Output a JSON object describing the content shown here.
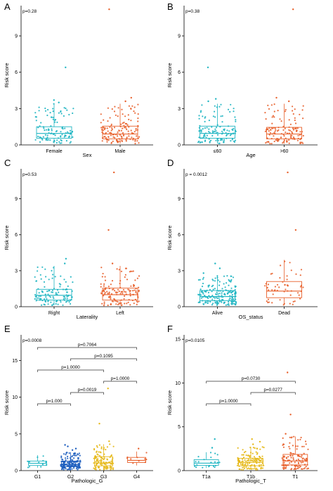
{
  "chart_data": [
    {
      "panel": "A",
      "type": "boxplot",
      "pvalue": "p=0.28",
      "xlabel": "Sex",
      "ylabel": "Risk score",
      "ylim": [
        0,
        11.5
      ],
      "yticks": [
        0,
        3,
        6,
        9
      ],
      "groups": [
        {
          "label": "Female",
          "color": "#1fb5c2",
          "q1": 0.55,
          "median": 0.95,
          "q3": 1.5,
          "wlow": 0.12,
          "whigh": 3.4,
          "n": 110,
          "outliers": [
            3.5,
            3.7,
            6.4
          ]
        },
        {
          "label": "Male",
          "color": "#e8612c",
          "q1": 0.5,
          "median": 0.9,
          "q3": 1.55,
          "wlow": 0.1,
          "whigh": 3.4,
          "n": 140,
          "outliers": [
            3.6,
            3.9,
            11.2
          ]
        }
      ],
      "brackets": []
    },
    {
      "panel": "B",
      "type": "boxplot",
      "pvalue": "p=0.38",
      "xlabel": "Age",
      "ylabel": "Risk score",
      "ylim": [
        0,
        11.5
      ],
      "yticks": [
        0,
        3,
        6,
        9
      ],
      "groups": [
        {
          "label": "≤60",
          "color": "#1fb5c2",
          "q1": 0.55,
          "median": 0.95,
          "q3": 1.55,
          "wlow": 0.12,
          "whigh": 3.4,
          "n": 120,
          "outliers": [
            3.6,
            3.8,
            6.4
          ]
        },
        {
          "label": ">60",
          "color": "#e8612c",
          "q1": 0.5,
          "median": 0.9,
          "q3": 1.45,
          "wlow": 0.1,
          "whigh": 3.4,
          "n": 130,
          "outliers": [
            3.6,
            3.9,
            11.2
          ]
        }
      ],
      "brackets": []
    },
    {
      "panel": "C",
      "type": "boxplot",
      "pvalue": "p=0.53",
      "xlabel": "Laterality",
      "ylabel": "Risk score",
      "ylim": [
        0,
        11.5
      ],
      "yticks": [
        0,
        3,
        6,
        9
      ],
      "groups": [
        {
          "label": "Right",
          "color": "#1fb5c2",
          "q1": 0.55,
          "median": 0.95,
          "q3": 1.45,
          "wlow": 0.12,
          "whigh": 3.4,
          "n": 115,
          "outliers": [
            3.6,
            4.0
          ]
        },
        {
          "label": "Left",
          "color": "#e8612c",
          "q1": 0.55,
          "median": 1.0,
          "q3": 1.55,
          "wlow": 0.1,
          "whigh": 3.4,
          "n": 135,
          "outliers": [
            3.6,
            6.4,
            11.2
          ]
        }
      ],
      "brackets": []
    },
    {
      "panel": "D",
      "type": "boxplot",
      "pvalue": "p = 0.0012",
      "xlabel": "OS_status",
      "ylabel": "Risk score",
      "ylim": [
        0,
        11.5
      ],
      "yticks": [
        0,
        3,
        6,
        9
      ],
      "groups": [
        {
          "label": "Alive",
          "color": "#1fb5c2",
          "q1": 0.5,
          "median": 0.85,
          "q3": 1.35,
          "wlow": 0.1,
          "whigh": 2.6,
          "n": 190,
          "outliers": [
            2.8,
            3.2,
            3.6
          ]
        },
        {
          "label": "Dead",
          "color": "#e8612c",
          "q1": 0.75,
          "median": 1.3,
          "q3": 2.1,
          "wlow": 0.15,
          "whigh": 3.9,
          "n": 55,
          "outliers": [
            6.4,
            11.2
          ]
        }
      ],
      "brackets": []
    },
    {
      "panel": "E",
      "type": "boxplot",
      "pvalue": "p=0.0008",
      "xlabel": "Pathologic_G",
      "ylabel": "Risk score",
      "ylim": [
        0,
        18.5
      ],
      "yticks": [
        0,
        5,
        10,
        15
      ],
      "groups": [
        {
          "label": "G1",
          "color": "#1fb5c2",
          "q1": 0.7,
          "median": 1.0,
          "q3": 1.3,
          "wlow": 0.4,
          "whigh": 2.1,
          "n": 12,
          "outliers": []
        },
        {
          "label": "G2",
          "color": "#1f5fbf",
          "q1": 0.55,
          "median": 0.85,
          "q3": 1.3,
          "wlow": 0.1,
          "whigh": 2.5,
          "n": 170,
          "outliers": [
            2.8,
            3.0,
            3.3,
            3.5
          ]
        },
        {
          "label": "G3",
          "color": "#e6b817",
          "q1": 0.65,
          "median": 1.05,
          "q3": 1.9,
          "wlow": 0.12,
          "whigh": 3.6,
          "n": 110,
          "outliers": [
            4.0,
            6.4,
            11.2
          ]
        },
        {
          "label": "G4",
          "color": "#e8612c",
          "q1": 1.1,
          "median": 1.4,
          "q3": 1.8,
          "wlow": 0.7,
          "whigh": 2.6,
          "n": 10,
          "outliers": [
            3.0
          ]
        }
      ],
      "brackets": [
        {
          "from": 0,
          "to": 3,
          "level": 6,
          "label": "p=0.7064"
        },
        {
          "from": 1,
          "to": 3,
          "level": 5,
          "label": "p=0.1095"
        },
        {
          "from": 0,
          "to": 2,
          "level": 4,
          "label": "p=1.0000"
        },
        {
          "from": 2,
          "to": 3,
          "level": 3,
          "label": "p=1.0000"
        },
        {
          "from": 1,
          "to": 2,
          "level": 2,
          "label": "p=0.0019"
        },
        {
          "from": 0,
          "to": 1,
          "level": 1,
          "label": "p=1.000"
        }
      ]
    },
    {
      "panel": "F",
      "type": "boxplot",
      "pvalue": "p=0.0105",
      "xlabel": "Pathologic_T",
      "ylabel": "Risk score",
      "ylim": [
        0,
        15.5
      ],
      "yticks": [
        0,
        5,
        10,
        15
      ],
      "groups": [
        {
          "label": "T1a",
          "color": "#1fb5c2",
          "q1": 0.6,
          "median": 0.85,
          "q3": 1.25,
          "wlow": 0.3,
          "whigh": 2.1,
          "n": 22,
          "outliers": [
            2.6,
            3.6
          ]
        },
        {
          "label": "T1b",
          "color": "#e6b817",
          "q1": 0.55,
          "median": 0.95,
          "q3": 1.4,
          "wlow": 0.1,
          "whigh": 2.7,
          "n": 130,
          "outliers": [
            3.0,
            3.3,
            3.6
          ]
        },
        {
          "label": "T1",
          "color": "#e8612c",
          "q1": 0.65,
          "median": 1.1,
          "q3": 1.85,
          "wlow": 0.12,
          "whigh": 3.9,
          "n": 120,
          "outliers": [
            4.2,
            6.4,
            11.2
          ]
        }
      ],
      "brackets": [
        {
          "from": 0,
          "to": 2,
          "level": 3,
          "label": "p=0.0730"
        },
        {
          "from": 1,
          "to": 2,
          "level": 2,
          "label": "p=0.0277"
        },
        {
          "from": 0,
          "to": 1,
          "level": 1,
          "label": "p=1.0000"
        }
      ]
    }
  ]
}
